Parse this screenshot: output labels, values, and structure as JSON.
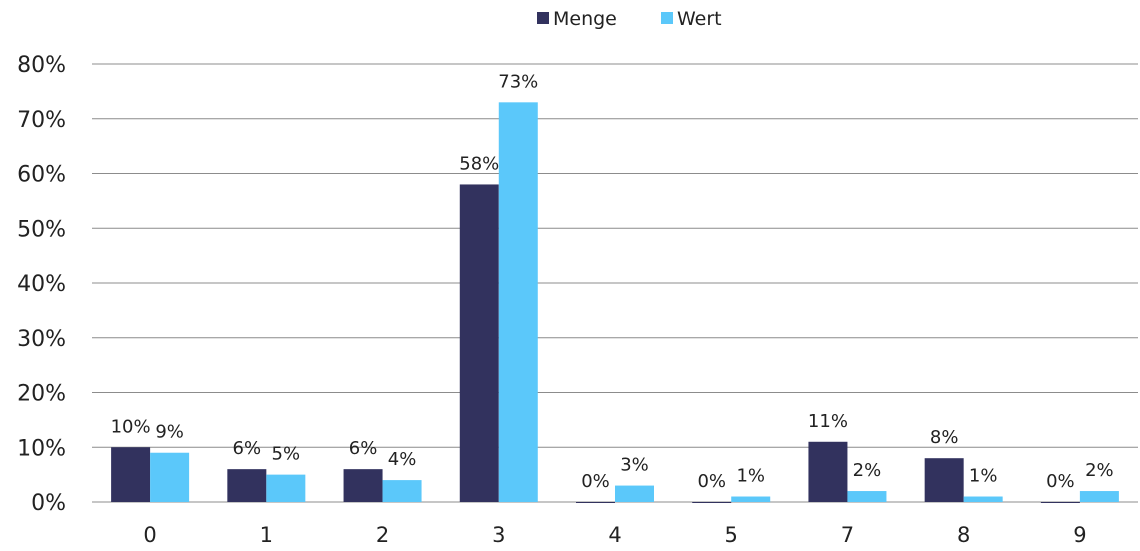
{
  "chart_data": {
    "type": "bar",
    "categories": [
      "0",
      "1",
      "2",
      "3",
      "4",
      "5",
      "7",
      "8",
      "9"
    ],
    "series": [
      {
        "name": "Menge",
        "color": "#32325e",
        "values": [
          10,
          6,
          6,
          58,
          0,
          0,
          11,
          8,
          0
        ],
        "labels": [
          "10%",
          "6%",
          "6%",
          "58%",
          "0%",
          "0%",
          "11%",
          "8%",
          "0%"
        ]
      },
      {
        "name": "Wert",
        "color": "#5bc8fa",
        "values": [
          9,
          5,
          4,
          73,
          3,
          1,
          2,
          1,
          2
        ],
        "labels": [
          "9%",
          "5%",
          "4%",
          "73%",
          "3%",
          "1%",
          "2%",
          "1%",
          "2%"
        ]
      }
    ],
    "y_ticks": [
      "0%",
      "10%",
      "20%",
      "30%",
      "40%",
      "50%",
      "60%",
      "70%",
      "80%"
    ],
    "ylim": [
      0,
      80
    ],
    "grid": true,
    "legend_position": "top-center",
    "title": "",
    "xlabel": "",
    "ylabel": ""
  }
}
